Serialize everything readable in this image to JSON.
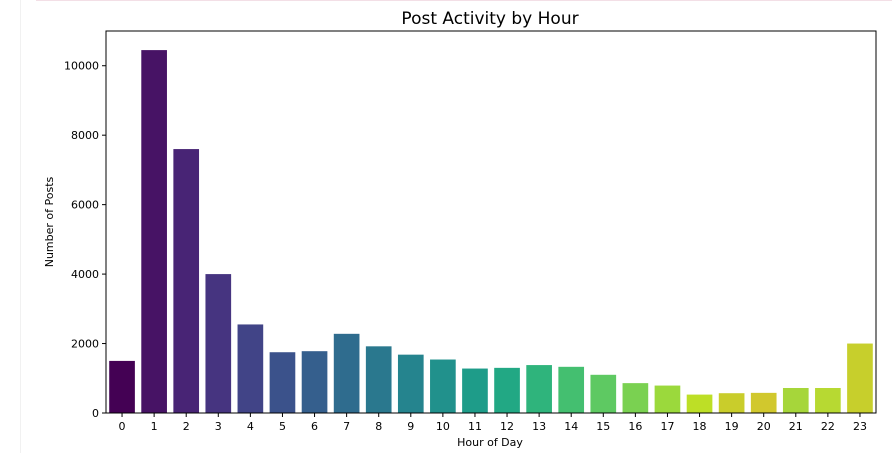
{
  "chart_data": {
    "type": "bar",
    "title": "Post Activity by Hour",
    "xlabel": "Hour of Day",
    "ylabel": "Number of Posts",
    "categories": [
      "0",
      "1",
      "2",
      "3",
      "4",
      "5",
      "6",
      "7",
      "8",
      "9",
      "10",
      "11",
      "12",
      "13",
      "14",
      "15",
      "16",
      "17",
      "18",
      "19",
      "20",
      "21",
      "22",
      "23"
    ],
    "values": [
      1500,
      10450,
      7600,
      4000,
      2550,
      1750,
      1780,
      2280,
      1920,
      1680,
      1540,
      1280,
      1300,
      1380,
      1330,
      1100,
      860,
      790,
      530,
      570,
      580,
      720,
      720,
      2000
    ],
    "yticks": [
      0,
      2000,
      4000,
      6000,
      8000,
      10000
    ],
    "ytick_labels": [
      "0",
      "2000",
      "4000",
      "6000",
      "8000",
      "10000"
    ],
    "ylim": [
      0,
      11000
    ],
    "grid": false,
    "legend": false,
    "colors": [
      "#440154",
      "#471365",
      "#482475",
      "#463480",
      "#414487",
      "#3b528b",
      "#355f8d",
      "#2f6c8e",
      "#2a788e",
      "#25848e",
      "#21918c",
      "#1e9c89",
      "#22a884",
      "#2fb47c",
      "#44bf70",
      "#5ec962",
      "#7ad151",
      "#9bd93c",
      "#bddf26",
      "#c9cd2b",
      "#d1c82d",
      "#a6d63a",
      "#b7d932",
      "#c7cf2c"
    ]
  }
}
